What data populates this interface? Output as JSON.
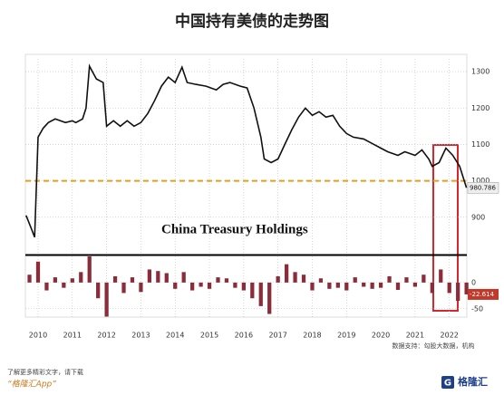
{
  "title": "中国持有美债的走势图",
  "chart_data": [
    {
      "type": "line",
      "annotation": "China Treasury Holdings",
      "color": "#111111",
      "x": [
        2009.65,
        2009.8,
        2009.9,
        2010.0,
        2010.15,
        2010.3,
        2010.5,
        2010.8,
        2011.0,
        2011.1,
        2011.3,
        2011.4,
        2011.5,
        2011.7,
        2011.9,
        2012.0,
        2012.2,
        2012.4,
        2012.6,
        2012.8,
        2013.0,
        2013.2,
        2013.4,
        2013.6,
        2013.8,
        2014.0,
        2014.2,
        2014.35,
        2014.6,
        2014.9,
        2015.2,
        2015.4,
        2015.6,
        2015.9,
        2016.1,
        2016.3,
        2016.5,
        2016.6,
        2016.8,
        2017.0,
        2017.2,
        2017.4,
        2017.6,
        2017.8,
        2018.0,
        2018.2,
        2018.4,
        2018.6,
        2018.8,
        2019.0,
        2019.2,
        2019.5,
        2019.8,
        2020.0,
        2020.2,
        2020.5,
        2020.7,
        2021.0,
        2021.2,
        2021.4,
        2021.5,
        2021.7,
        2021.9,
        2022.1,
        2022.3,
        2022.5
      ],
      "values": [
        905,
        870,
        845,
        1120,
        1145,
        1160,
        1170,
        1160,
        1165,
        1160,
        1170,
        1200,
        1315,
        1280,
        1270,
        1150,
        1165,
        1150,
        1165,
        1150,
        1160,
        1185,
        1220,
        1260,
        1285,
        1270,
        1312,
        1270,
        1265,
        1260,
        1250,
        1265,
        1270,
        1260,
        1255,
        1200,
        1120,
        1060,
        1050,
        1060,
        1100,
        1140,
        1175,
        1200,
        1180,
        1190,
        1175,
        1180,
        1150,
        1130,
        1120,
        1115,
        1100,
        1090,
        1080,
        1070,
        1080,
        1070,
        1085,
        1060,
        1040,
        1050,
        1090,
        1070,
        1040,
        980.786
      ],
      "xlim": [
        2009.63,
        2022.51
      ],
      "ylim": [
        800,
        1335
      ],
      "yticks": [
        900,
        1000,
        1100,
        1200,
        1300
      ],
      "hline": {
        "value": 1000,
        "color": "#e0a020"
      },
      "grid": true
    },
    {
      "type": "bar",
      "color": "#8b2c3a",
      "x": [
        2009.75,
        2010.0,
        2010.25,
        2010.5,
        2010.75,
        2011.0,
        2011.25,
        2011.5,
        2011.75,
        2012.0,
        2012.25,
        2012.5,
        2012.75,
        2013.0,
        2013.25,
        2013.5,
        2013.75,
        2014.0,
        2014.25,
        2014.5,
        2014.75,
        2015.0,
        2015.25,
        2015.5,
        2015.75,
        2016.0,
        2016.25,
        2016.5,
        2016.75,
        2017.0,
        2017.25,
        2017.5,
        2017.75,
        2018.0,
        2018.25,
        2018.5,
        2018.75,
        2019.0,
        2019.25,
        2019.5,
        2019.75,
        2020.0,
        2020.25,
        2020.5,
        2020.75,
        2021.0,
        2021.25,
        2021.5,
        2021.75,
        2022.0,
        2022.25,
        2022.5
      ],
      "values": [
        15,
        40,
        -15,
        10,
        -10,
        8,
        20,
        50,
        -30,
        -65,
        12,
        -20,
        10,
        -18,
        25,
        22,
        18,
        -12,
        20,
        -15,
        -8,
        -12,
        10,
        8,
        -10,
        -15,
        -30,
        -45,
        -60,
        12,
        35,
        20,
        15,
        -15,
        8,
        -12,
        -10,
        -15,
        10,
        -8,
        -12,
        -10,
        12,
        -14,
        10,
        -8,
        15,
        -20,
        25,
        -20,
        -35,
        -22.614
      ],
      "xlim": [
        2009.63,
        2022.51
      ],
      "ylim": [
        -66,
        50
      ],
      "yticks": [
        -50,
        0
      ],
      "xticks": [
        2010,
        2011,
        2012,
        2013,
        2014,
        2015,
        2016,
        2017,
        2018,
        2019,
        2020,
        2021,
        2022
      ],
      "grid": true
    }
  ],
  "source": "数据支持：勾股大数据，机构",
  "footer": {
    "note": "了解更多精彩文字，请下载",
    "app": "“格隆汇App”",
    "logo": "格隆汇"
  }
}
